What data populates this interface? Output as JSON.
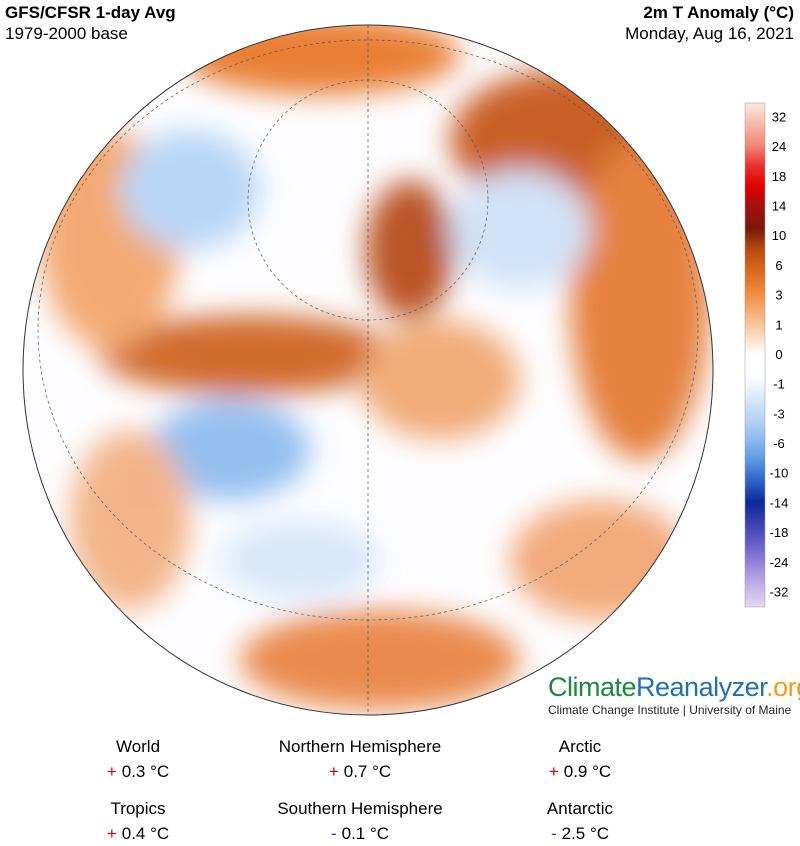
{
  "header": {
    "title": "GFS/CFSR 1-day Avg",
    "subtitle": "1979-2000 base",
    "variable": "2m T Anomaly (°C)",
    "date": "Monday, Aug 16, 2021"
  },
  "colorbar": {
    "labels": [
      "32",
      "24",
      "18",
      "14",
      "10",
      "6",
      "3",
      "1",
      "0",
      "-1",
      "-3",
      "-6",
      "-10",
      "-14",
      "-18",
      "-24",
      "-32"
    ]
  },
  "brand": {
    "parts": [
      "Climate",
      "Reanalyzer",
      ".org"
    ],
    "institution": "Climate Change Institute | University of Maine"
  },
  "stats": [
    {
      "region": "World",
      "sign": "+",
      "value": "0.3 °C"
    },
    {
      "region": "Northern Hemisphere",
      "sign": "+",
      "value": "0.7 °C"
    },
    {
      "region": "Arctic",
      "sign": "+",
      "value": "0.9 °C"
    },
    {
      "region": "Tropics",
      "sign": "+",
      "value": "0.4 °C"
    },
    {
      "region": "Southern Hemisphere",
      "sign": "-",
      "value": "0.1 °C"
    },
    {
      "region": "Antarctic",
      "sign": "-",
      "value": "2.5 °C"
    }
  ]
}
